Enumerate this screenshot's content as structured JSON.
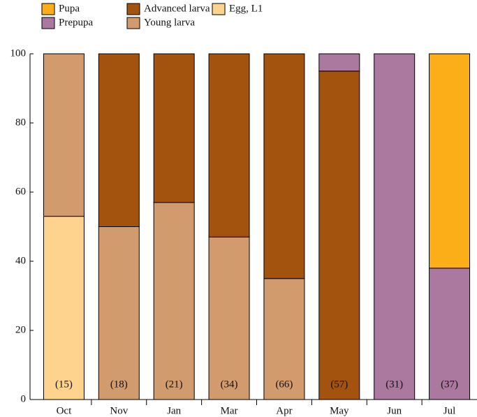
{
  "chart_data": {
    "type": "stacked_bar",
    "categories": [
      "Oct",
      "Nov",
      "Jan",
      "Mar",
      "Apr",
      "May",
      "Jun",
      "Jul"
    ],
    "series": [
      {
        "name": "Egg, L1",
        "color": "#fed38e",
        "values": [
          53,
          0,
          0,
          0,
          0,
          0,
          0,
          0
        ]
      },
      {
        "name": "Young larva",
        "color": "#d19b6e",
        "values": [
          47,
          50,
          57,
          47,
          35,
          0,
          0,
          0
        ]
      },
      {
        "name": "Advanced larva",
        "color": "#a3530d",
        "values": [
          0,
          50,
          43,
          53,
          65,
          95,
          0,
          0
        ]
      },
      {
        "name": "Prepupa",
        "color": "#ab789f",
        "values": [
          0,
          0,
          0,
          0,
          0,
          5,
          100,
          38
        ]
      },
      {
        "name": "Pupa",
        "color": "#fbae17",
        "values": [
          0,
          0,
          0,
          0,
          0,
          0,
          0,
          62
        ]
      }
    ],
    "sample_sizes": [
      "(15)",
      "(18)",
      "(21)",
      "(34)",
      "(66)",
      "(57)",
      "(31)",
      "(37)"
    ],
    "ylim": [
      0,
      100
    ],
    "yticks": [
      0,
      20,
      40,
      60,
      80,
      100
    ]
  }
}
